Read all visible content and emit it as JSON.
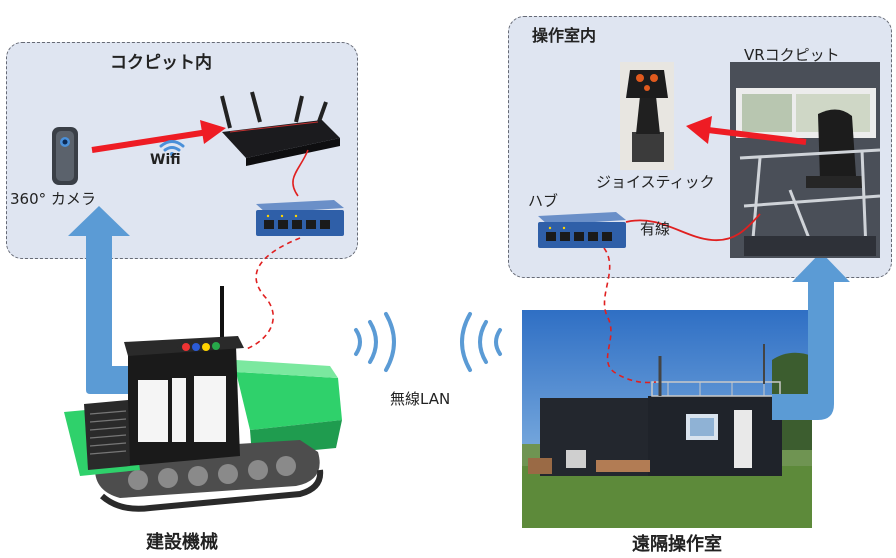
{
  "panels": {
    "cockpit_title": "コクピット内",
    "control_room_title": "操作室内"
  },
  "labels": {
    "camera": "360°  カメラ",
    "wifi": "Wifi",
    "joystick": "ジョイスティック",
    "vr_cockpit": "VRコクピット",
    "hub": "ハブ",
    "wired": "有線",
    "wireless_lan": "無線LAN",
    "construction_machine": "建設機械",
    "remote_control_room": "遠隔操作室"
  },
  "colors": {
    "panel_fill": "#dfe5f1",
    "red_arrow": "#ee1c24",
    "blue_arrow": "#5b9bd5",
    "wire": "#e02020",
    "machine_green": "#2fd16b"
  }
}
